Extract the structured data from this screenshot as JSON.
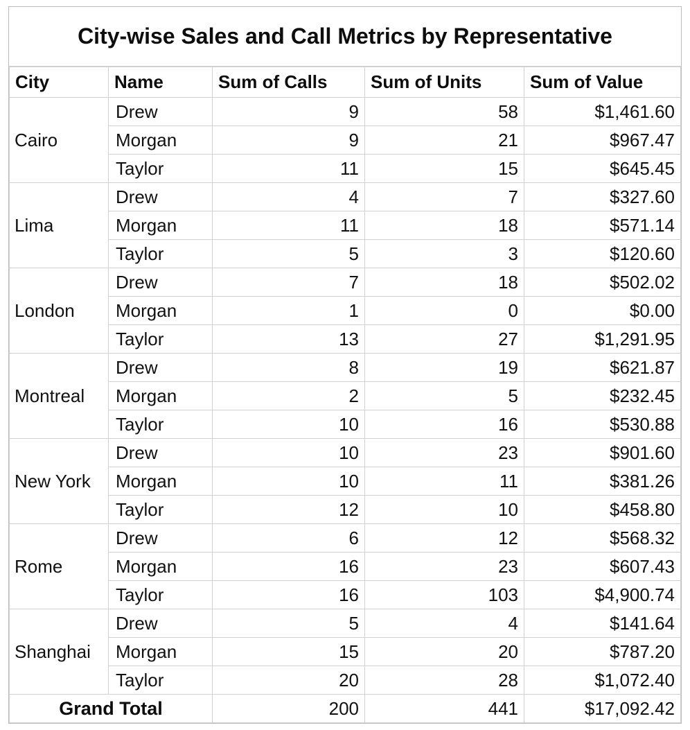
{
  "chart_data": {
    "type": "table",
    "title": "City-wise Sales and Call Metrics by Representative",
    "columns": [
      "City",
      "Name",
      "Sum of Calls",
      "Sum of Units",
      "Sum of Value"
    ],
    "groups": [
      {
        "city": "Cairo",
        "rows": [
          {
            "name": "Drew",
            "calls": 9,
            "units": 58,
            "value": 1461.6
          },
          {
            "name": "Morgan",
            "calls": 9,
            "units": 21,
            "value": 967.47
          },
          {
            "name": "Taylor",
            "calls": 11,
            "units": 15,
            "value": 645.45
          }
        ]
      },
      {
        "city": "Lima",
        "rows": [
          {
            "name": "Drew",
            "calls": 4,
            "units": 7,
            "value": 327.6
          },
          {
            "name": "Morgan",
            "calls": 11,
            "units": 18,
            "value": 571.14
          },
          {
            "name": "Taylor",
            "calls": 5,
            "units": 3,
            "value": 120.6
          }
        ]
      },
      {
        "city": "London",
        "rows": [
          {
            "name": "Drew",
            "calls": 7,
            "units": 18,
            "value": 502.02
          },
          {
            "name": "Morgan",
            "calls": 1,
            "units": 0,
            "value": 0.0
          },
          {
            "name": "Taylor",
            "calls": 13,
            "units": 27,
            "value": 1291.95
          }
        ]
      },
      {
        "city": "Montreal",
        "rows": [
          {
            "name": "Drew",
            "calls": 8,
            "units": 19,
            "value": 621.87
          },
          {
            "name": "Morgan",
            "calls": 2,
            "units": 5,
            "value": 232.45
          },
          {
            "name": "Taylor",
            "calls": 10,
            "units": 16,
            "value": 530.88
          }
        ]
      },
      {
        "city": "New York",
        "rows": [
          {
            "name": "Drew",
            "calls": 10,
            "units": 23,
            "value": 901.6
          },
          {
            "name": "Morgan",
            "calls": 10,
            "units": 11,
            "value": 381.26
          },
          {
            "name": "Taylor",
            "calls": 12,
            "units": 10,
            "value": 458.8
          }
        ]
      },
      {
        "city": "Rome",
        "rows": [
          {
            "name": "Drew",
            "calls": 6,
            "units": 12,
            "value": 568.32
          },
          {
            "name": "Morgan",
            "calls": 16,
            "units": 23,
            "value": 607.43
          },
          {
            "name": "Taylor",
            "calls": 16,
            "units": 103,
            "value": 4900.74
          }
        ]
      },
      {
        "city": "Shanghai",
        "rows": [
          {
            "name": "Drew",
            "calls": 5,
            "units": 4,
            "value": 141.64
          },
          {
            "name": "Morgan",
            "calls": 15,
            "units": 20,
            "value": 787.2
          },
          {
            "name": "Taylor",
            "calls": 20,
            "units": 28,
            "value": 1072.4
          }
        ]
      }
    ],
    "grand_total": {
      "label": "Grand Total",
      "calls": 200,
      "units": 441,
      "value": 17092.42
    }
  }
}
